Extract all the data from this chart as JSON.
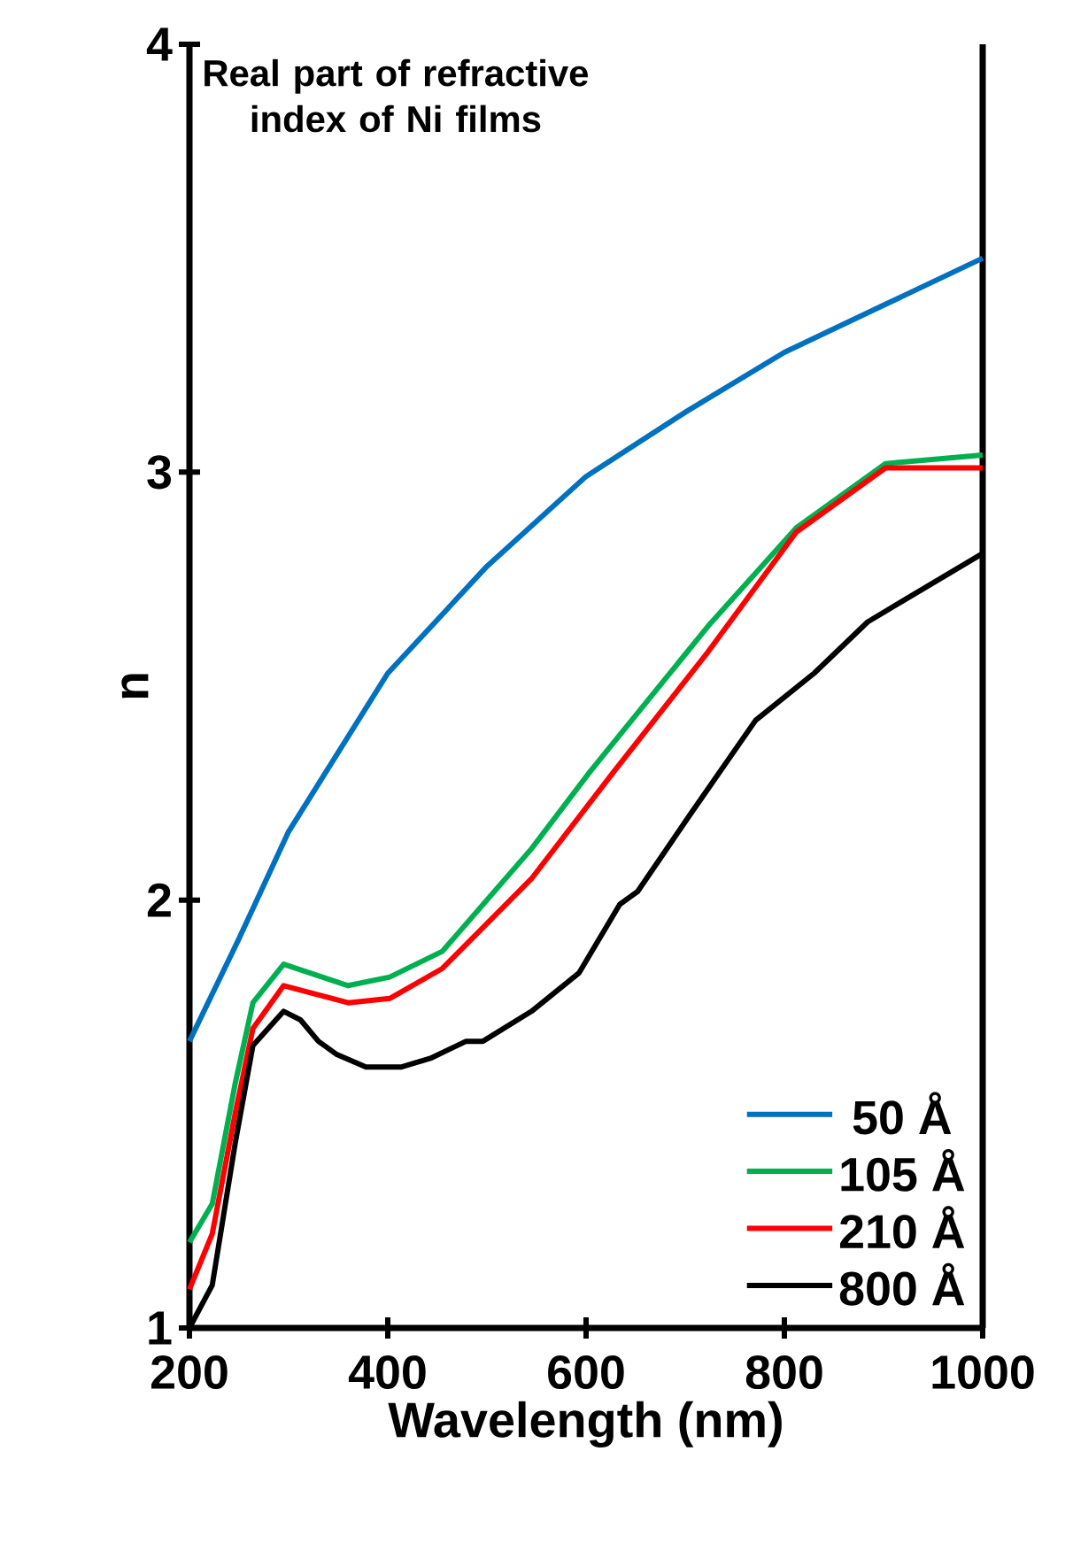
{
  "chart_data": {
    "type": "line",
    "title": "Real part of refractive index of Ni films",
    "xlabel": "Wavelength (nm)",
    "ylabel": "n",
    "xlim": [
      200,
      1000
    ],
    "ylim": [
      1,
      4
    ],
    "xticks": [
      200,
      400,
      600,
      800,
      1000
    ],
    "yticks": [
      1,
      2,
      3,
      4
    ],
    "grid": false,
    "legend": "bottom right",
    "marker": "none",
    "line_style": "solid",
    "series": [
      {
        "name": "50 Å",
        "color": "#0070c0",
        "x": [
          200,
          250,
          300,
          400,
          500,
          600,
          700,
          800,
          900,
          1000
        ],
        "values": [
          1.67,
          1.91,
          2.16,
          2.53,
          2.78,
          2.99,
          3.14,
          3.28,
          3.39,
          3.5
        ]
      },
      {
        "name": "105 Å",
        "color": "#00b050",
        "x": [
          200,
          223,
          246,
          264,
          295,
          360,
          402,
          455,
          545,
          604,
          723,
          812,
          902,
          1000
        ],
        "values": [
          1.2,
          1.29,
          1.57,
          1.76,
          1.85,
          1.8,
          1.82,
          1.88,
          2.12,
          2.3,
          2.64,
          2.87,
          3.02,
          3.04
        ]
      },
      {
        "name": "210 Å",
        "color": "#ff0000",
        "x": [
          200,
          223,
          246,
          264,
          295,
          360,
          402,
          455,
          545,
          628,
          723,
          812,
          902,
          1000
        ],
        "values": [
          1.09,
          1.22,
          1.5,
          1.7,
          1.8,
          1.76,
          1.77,
          1.84,
          2.05,
          2.3,
          2.58,
          2.86,
          3.01,
          3.01
        ]
      },
      {
        "name": "800 Å",
        "color": "#000000",
        "x": [
          200,
          223,
          246,
          264,
          295,
          312,
          330,
          348,
          378,
          414,
          443,
          479,
          496,
          545,
          593,
          634,
          652,
          705,
          771,
          830,
          884,
          920,
          1000
        ],
        "values": [
          1.0,
          1.1,
          1.43,
          1.66,
          1.74,
          1.72,
          1.67,
          1.64,
          1.61,
          1.61,
          1.63,
          1.67,
          1.67,
          1.74,
          1.83,
          1.99,
          2.02,
          2.2,
          2.42,
          2.53,
          2.65,
          2.7,
          2.81
        ]
      }
    ]
  }
}
